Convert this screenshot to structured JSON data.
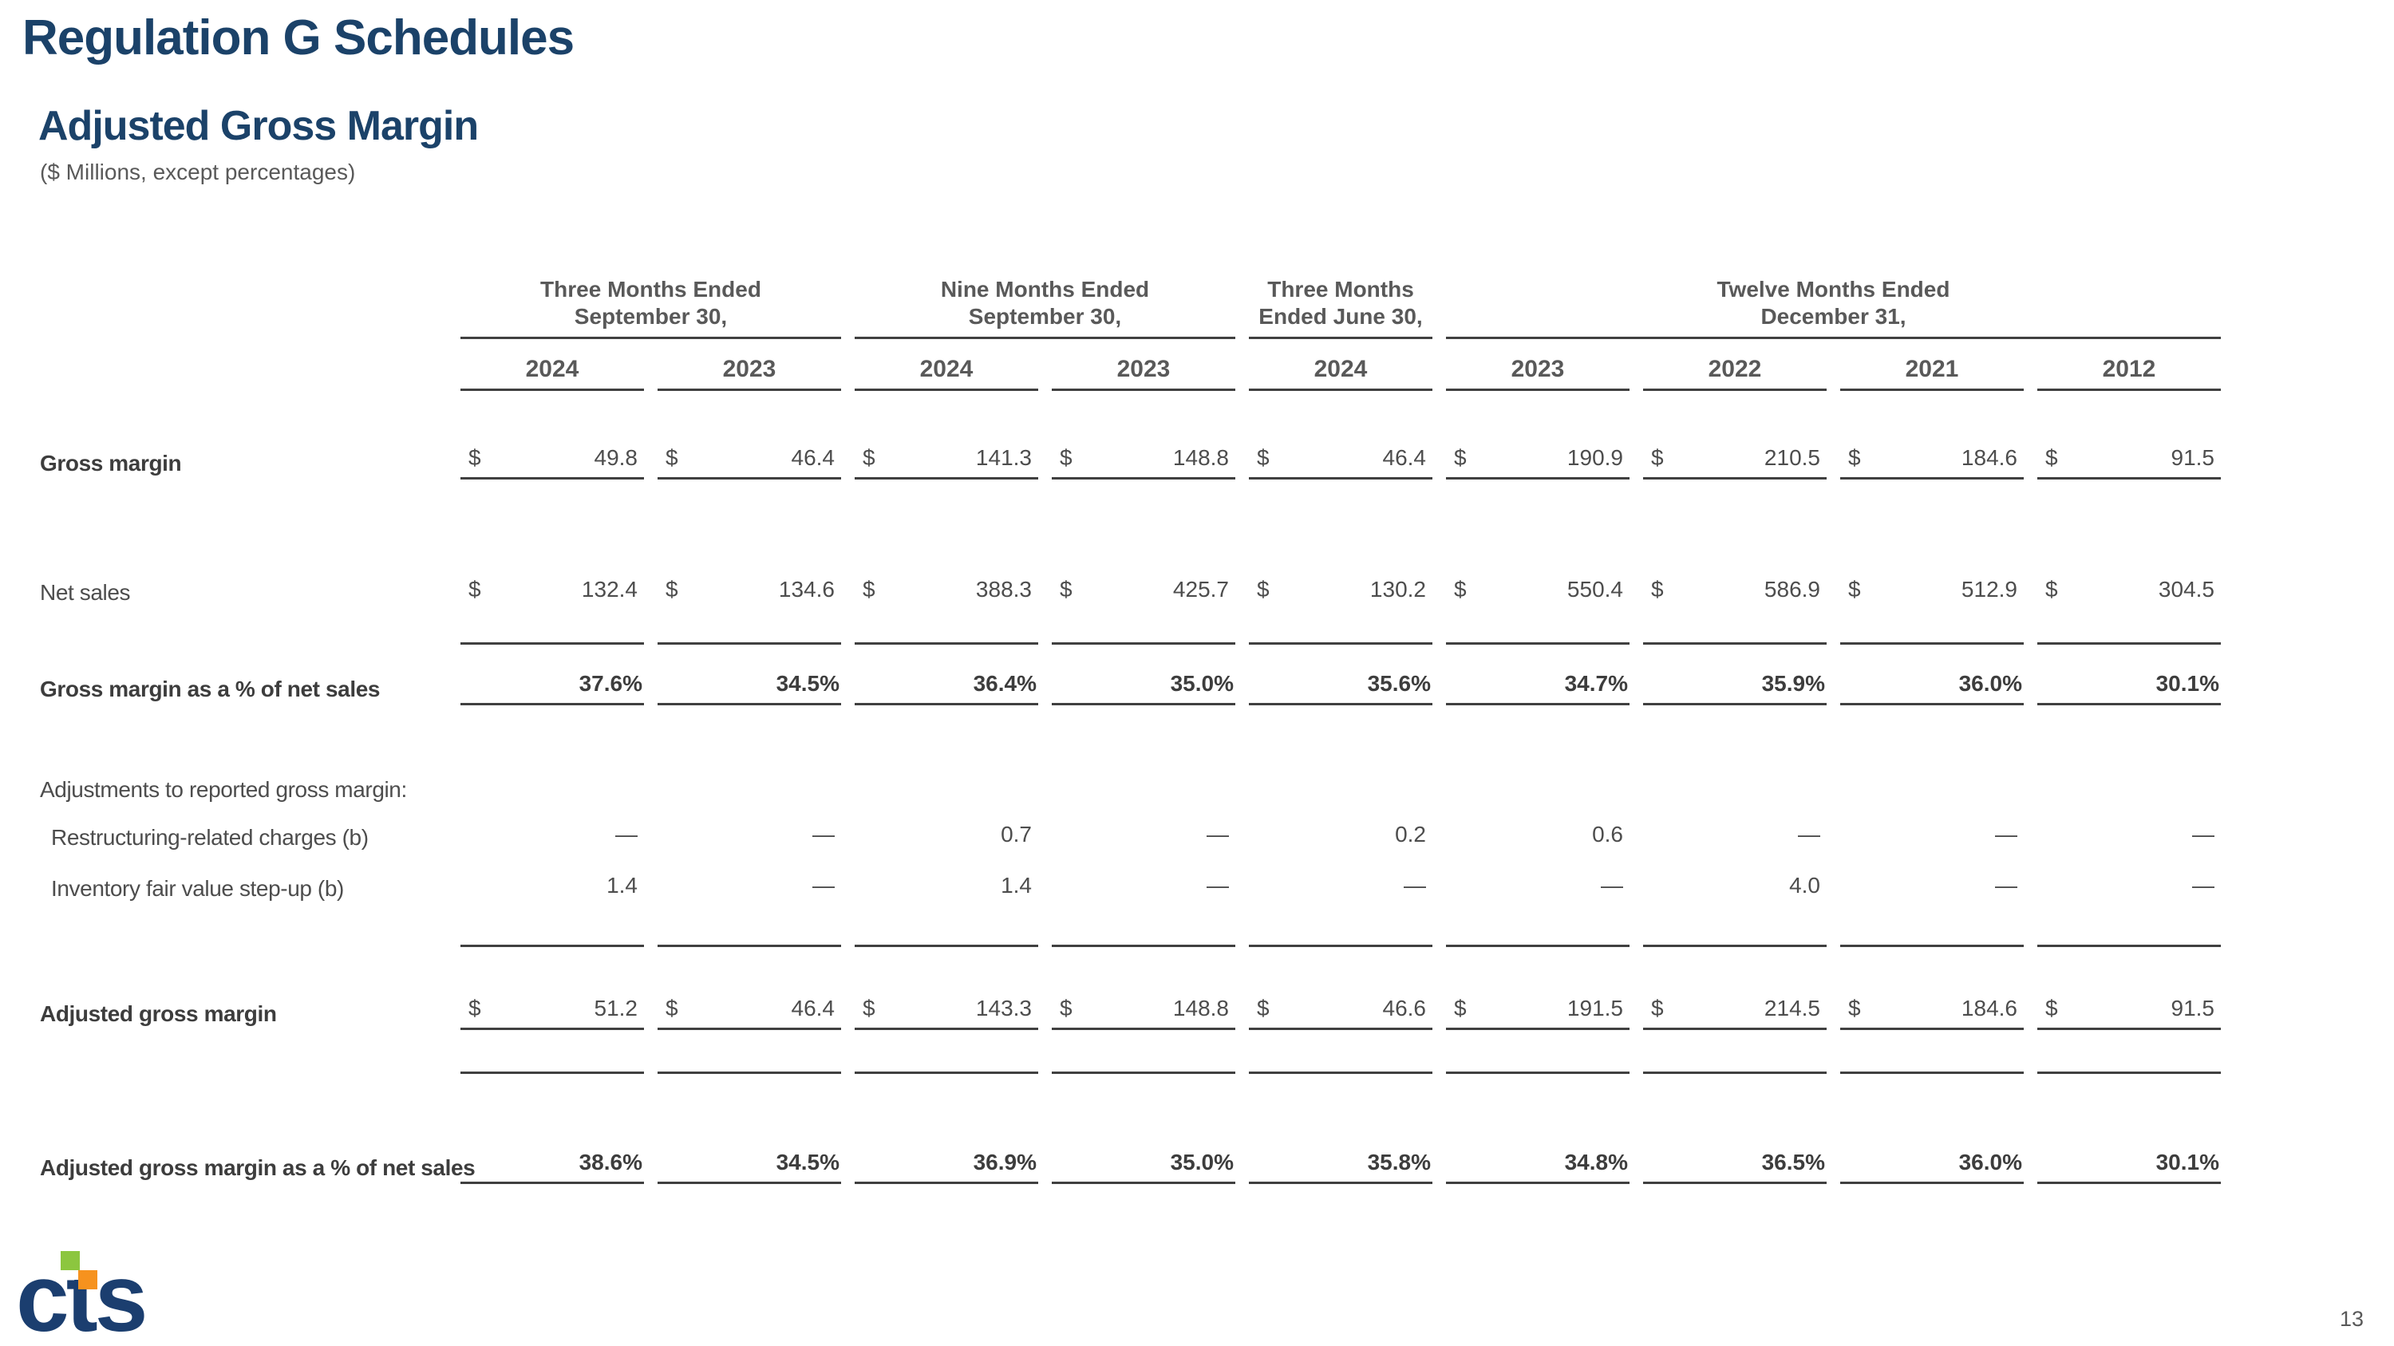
{
  "slide": {
    "title": "Regulation G Schedules",
    "subtitle": "Adjusted Gross Margin",
    "units_note": "($ Millions, except percentages)",
    "page_number": "13"
  },
  "logo": {
    "text": "cts",
    "navy": "#1b3e6f",
    "green": "#8cc63f",
    "orange": "#f6921e"
  },
  "colors": {
    "title_navy": "#1b4269",
    "header_gray": "#595959",
    "body_gray": "#4d4d4d",
    "rule": "#404040"
  },
  "table": {
    "column_groups": [
      {
        "line1": "Three Months Ended",
        "line2": "September 30,",
        "span": 2
      },
      {
        "line1": "Nine Months Ended",
        "line2": "September 30,",
        "span": 2
      },
      {
        "line1": "Three Months",
        "line2": "Ended June 30,",
        "span": 1
      },
      {
        "line1": "Twelve Months Ended",
        "line2": "December 31,",
        "span": 4
      }
    ],
    "years": [
      "2024",
      "2023",
      "2024",
      "2023",
      "2024",
      "2023",
      "2022",
      "2021",
      "2012"
    ],
    "rows": [
      {
        "label": "Gross margin",
        "bold_label": true,
        "dollar": true,
        "bold_values": false,
        "indent": false,
        "section_header": false,
        "values": [
          "49.8",
          "46.4",
          "141.3",
          "148.8",
          "46.4",
          "190.9",
          "210.5",
          "184.6",
          "91.5"
        ]
      },
      {
        "label": "Net sales",
        "bold_label": false,
        "dollar": true,
        "bold_values": false,
        "indent": false,
        "section_header": false,
        "values": [
          "132.4",
          "134.6",
          "388.3",
          "425.7",
          "130.2",
          "550.4",
          "586.9",
          "512.9",
          "304.5"
        ]
      },
      {
        "label": "Gross margin as a % of net sales",
        "bold_label": true,
        "dollar": false,
        "bold_values": true,
        "indent": false,
        "section_header": false,
        "values": [
          "37.6%",
          "34.5%",
          "36.4%",
          "35.0%",
          "35.6%",
          "34.7%",
          "35.9%",
          "36.0%",
          "30.1%"
        ]
      },
      {
        "label": "Adjustments to reported gross margin:",
        "bold_label": false,
        "dollar": false,
        "bold_values": false,
        "indent": false,
        "section_header": true,
        "values": []
      },
      {
        "label": "Restructuring-related charges (b)",
        "bold_label": false,
        "dollar": false,
        "bold_values": false,
        "indent": true,
        "section_header": false,
        "values": [
          "—",
          "—",
          "0.7",
          "—",
          "0.2",
          "0.6",
          "—",
          "—",
          "—"
        ]
      },
      {
        "label": "Inventory fair value step-up (b)",
        "bold_label": false,
        "dollar": false,
        "bold_values": false,
        "indent": true,
        "section_header": false,
        "values": [
          "1.4",
          "—",
          "1.4",
          "—",
          "—",
          "—",
          "4.0",
          "—",
          "—"
        ]
      },
      {
        "label": "Adjusted gross margin",
        "bold_label": true,
        "dollar": true,
        "bold_values": false,
        "indent": false,
        "section_header": false,
        "values": [
          "51.2",
          "46.4",
          "143.3",
          "148.8",
          "46.6",
          "191.5",
          "214.5",
          "184.6",
          "91.5"
        ]
      },
      {
        "label": "Adjusted gross margin as a % of net sales",
        "bold_label": true,
        "dollar": false,
        "bold_values": true,
        "indent": false,
        "section_header": false,
        "values": [
          "38.6%",
          "34.5%",
          "36.9%",
          "35.0%",
          "35.8%",
          "34.8%",
          "36.5%",
          "36.0%",
          "30.1%"
        ]
      }
    ]
  }
}
